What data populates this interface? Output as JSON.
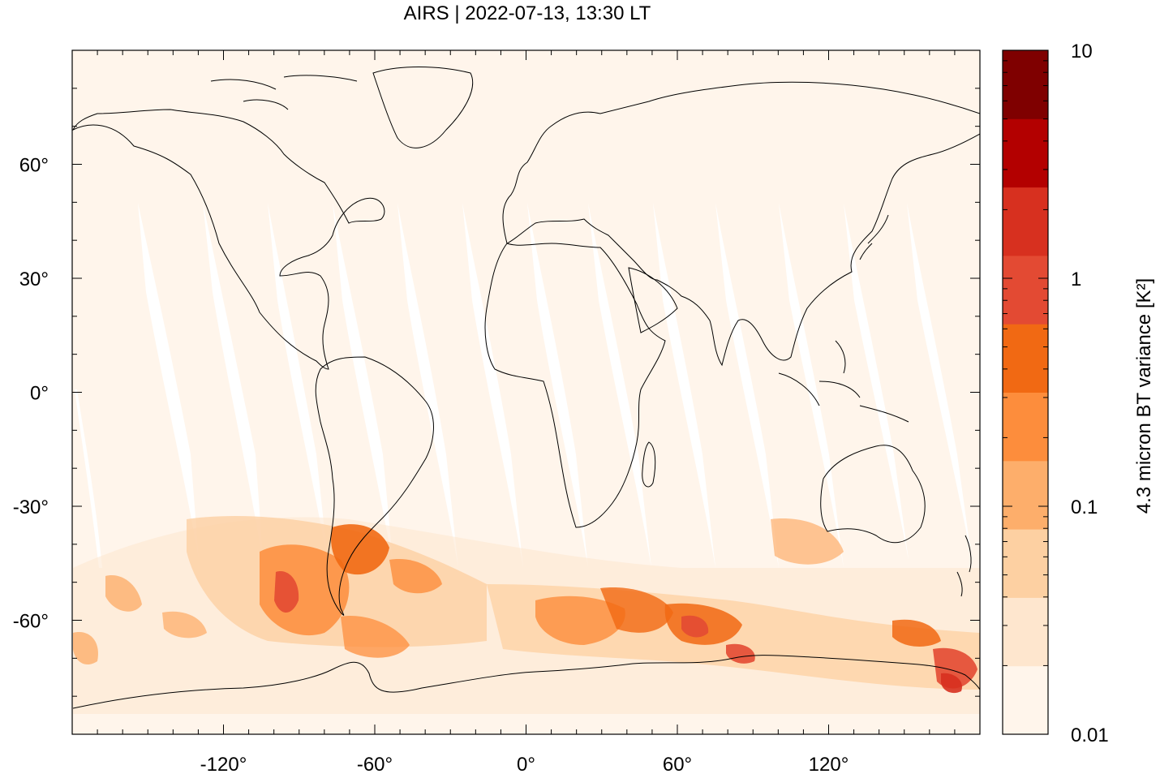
{
  "title": "AIRS | 2022-07-13, 13:30 LT",
  "map": {
    "projection": "equirectangular",
    "lon_range": [
      -180,
      180
    ],
    "lat_range": [
      -90,
      90
    ],
    "x_ticks": [
      {
        "value": -120,
        "label": "-120°"
      },
      {
        "value": -60,
        "label": "-60°"
      },
      {
        "value": 0,
        "label": "0°"
      },
      {
        "value": 60,
        "label": "60°"
      },
      {
        "value": 120,
        "label": "120°"
      }
    ],
    "y_ticks": [
      {
        "value": 60,
        "label": "60°"
      },
      {
        "value": 30,
        "label": "30°"
      },
      {
        "value": 0,
        "label": "0°"
      },
      {
        "value": -30,
        "label": "-30°"
      },
      {
        "value": -60,
        "label": "-60°"
      }
    ],
    "background_color": "#fff5eb",
    "coastline_color": "#000000",
    "swath_gap_color": "#ffffff"
  },
  "colorbar": {
    "label": "4.3 micron BT variance [K²]",
    "scale": "log",
    "range": [
      0.01,
      10
    ],
    "ticks": [
      {
        "value": 10,
        "label": "10"
      },
      {
        "value": 1,
        "label": "1"
      },
      {
        "value": 0.1,
        "label": "0.1"
      },
      {
        "value": 0.01,
        "label": "0.01"
      }
    ],
    "colors": [
      "#fff5eb",
      "#fee6ce",
      "#fdd0a2",
      "#fdae6b",
      "#fd8d3c",
      "#f16913",
      "#e34a33",
      "#d7301f",
      "#b30000",
      "#7f0000"
    ]
  }
}
